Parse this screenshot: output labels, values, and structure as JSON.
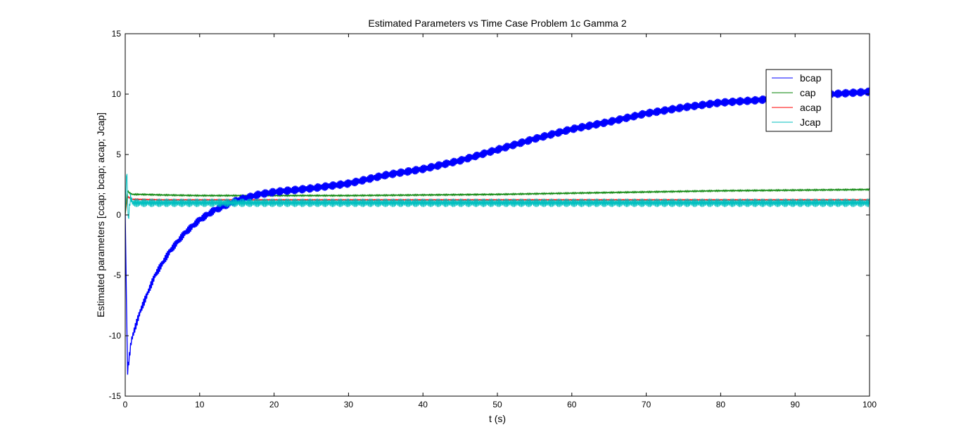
{
  "chart_data": {
    "type": "line",
    "title": "Estimated Parameters vs Time Case Problem 1c Gamma 2",
    "xlabel": "t (s)",
    "ylabel": "Estimated parameters [ccap; bcap; acap; Jcap]",
    "xlim": [
      0,
      100
    ],
    "ylim": [
      -15,
      15
    ],
    "xticks": [
      0,
      10,
      20,
      30,
      40,
      50,
      60,
      70,
      80,
      90,
      100
    ],
    "yticks": [
      -15,
      -10,
      -5,
      0,
      5,
      10,
      15
    ],
    "grid": false,
    "legend_position": "top-right",
    "series": [
      {
        "name": "bcap",
        "color": "#0000ff",
        "x": [
          0,
          0.3,
          0.5,
          0.8,
          1,
          2,
          3,
          4,
          5,
          6,
          8,
          10,
          12,
          15,
          18,
          20,
          25,
          30,
          35,
          40,
          45,
          50,
          55,
          60,
          65,
          70,
          75,
          80,
          85,
          90,
          95,
          100
        ],
        "y": [
          0,
          -13,
          -12,
          -10.5,
          -10,
          -8,
          -6.5,
          -5,
          -4,
          -3,
          -1.5,
          -0.4,
          0.4,
          1.2,
          1.7,
          1.9,
          2.2,
          2.6,
          3.3,
          3.8,
          4.5,
          5.4,
          6.3,
          7.1,
          7.7,
          8.4,
          8.9,
          9.3,
          9.5,
          9.8,
          10.0,
          10.2
        ]
      },
      {
        "name": "cap",
        "color": "#008000",
        "x": [
          0,
          0.3,
          0.6,
          1,
          2,
          5,
          10,
          20,
          30,
          40,
          50,
          60,
          70,
          80,
          90,
          100
        ],
        "y": [
          0,
          2.0,
          1.8,
          1.7,
          1.7,
          1.65,
          1.6,
          1.6,
          1.6,
          1.65,
          1.7,
          1.8,
          1.9,
          2.0,
          2.05,
          2.1
        ]
      },
      {
        "name": "acap",
        "color": "#ff0000",
        "x": [
          0,
          0.3,
          1,
          5,
          10,
          20,
          40,
          60,
          80,
          100
        ],
        "y": [
          0,
          1.5,
          1.3,
          1.25,
          1.25,
          1.25,
          1.25,
          1.25,
          1.25,
          1.25
        ]
      },
      {
        "name": "Jcap",
        "color": "#00bfbf",
        "x": [
          0,
          0.2,
          0.4,
          0.7,
          1,
          2,
          5,
          10,
          20,
          40,
          60,
          80,
          100
        ],
        "y": [
          0,
          4.0,
          -0.5,
          1.5,
          1.0,
          1.0,
          1.0,
          1.0,
          1.0,
          1.0,
          1.0,
          1.0,
          1.0
        ]
      }
    ]
  }
}
